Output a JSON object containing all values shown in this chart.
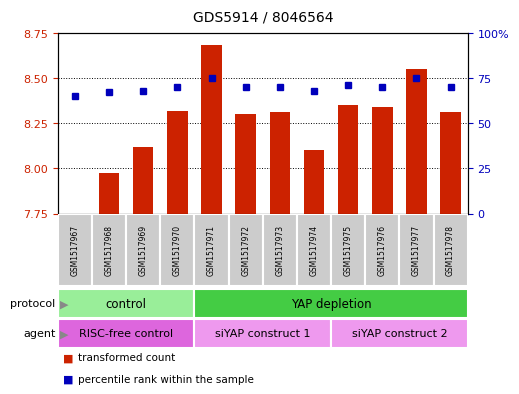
{
  "title": "GDS5914 / 8046564",
  "samples": [
    "GSM1517967",
    "GSM1517968",
    "GSM1517969",
    "GSM1517970",
    "GSM1517971",
    "GSM1517972",
    "GSM1517973",
    "GSM1517974",
    "GSM1517975",
    "GSM1517976",
    "GSM1517977",
    "GSM1517978"
  ],
  "transformed_count": [
    7.75,
    7.975,
    8.12,
    8.32,
    8.68,
    8.3,
    8.31,
    8.1,
    8.35,
    8.34,
    8.55,
    8.31
  ],
  "percentile_rank": [
    65,
    67,
    68,
    70,
    75,
    70,
    70,
    68,
    71,
    70,
    75,
    70
  ],
  "ylim_left": [
    7.75,
    8.75
  ],
  "ylim_right": [
    0,
    100
  ],
  "yticks_left": [
    7.75,
    8.0,
    8.25,
    8.5,
    8.75
  ],
  "yticks_right": [
    0,
    25,
    50,
    75,
    100
  ],
  "ytick_labels_right": [
    "0",
    "25",
    "50",
    "75",
    "100%"
  ],
  "bar_color": "#cc2200",
  "dot_color": "#0000bb",
  "grid_color": "#000000",
  "bg_color": "#ffffff",
  "xticklabel_bg": "#cccccc",
  "protocol_groups": [
    {
      "label": "control",
      "start": 0,
      "end": 3,
      "color": "#99ee99"
    },
    {
      "label": "YAP depletion",
      "start": 4,
      "end": 11,
      "color": "#44cc44"
    }
  ],
  "agent_groups": [
    {
      "label": "RISC-free control",
      "start": 0,
      "end": 3,
      "color": "#dd66dd"
    },
    {
      "label": "siYAP construct 1",
      "start": 4,
      "end": 7,
      "color": "#ee99ee"
    },
    {
      "label": "siYAP construct 2",
      "start": 8,
      "end": 11,
      "color": "#ee99ee"
    }
  ],
  "legend_items": [
    {
      "label": "transformed count",
      "color": "#cc2200"
    },
    {
      "label": "percentile rank within the sample",
      "color": "#0000bb"
    }
  ],
  "protocol_label": "protocol",
  "agent_label": "agent",
  "tick_label_color_left": "#cc2200",
  "tick_label_color_right": "#0000bb",
  "bar_width": 0.6,
  "figsize": [
    5.13,
    3.93
  ],
  "dpi": 100
}
